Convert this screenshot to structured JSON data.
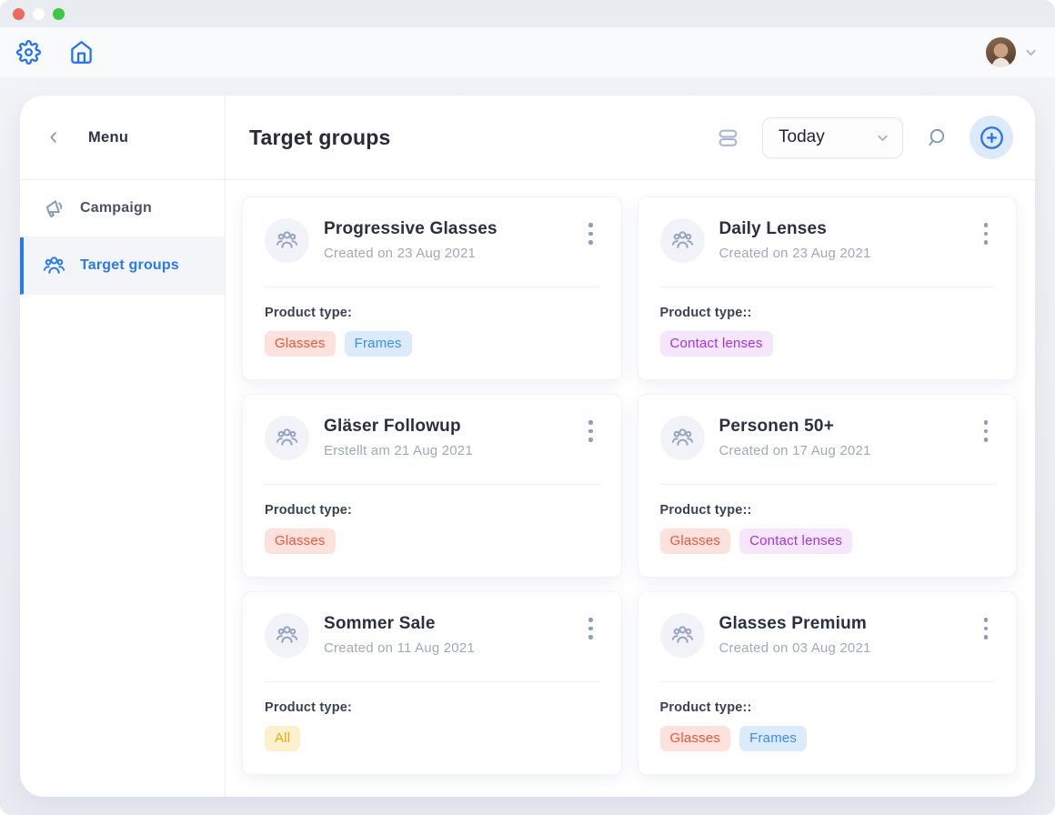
{
  "window": {
    "traffic_lights": [
      {
        "name": "close",
        "color": "#ee6a5f"
      },
      {
        "name": "minimize",
        "color": "#ffffff"
      },
      {
        "name": "zoom",
        "color": "#3ac845"
      }
    ]
  },
  "topnav": {
    "icons": [
      "gear-icon",
      "home-icon"
    ]
  },
  "sidebar": {
    "back_label": "Menu",
    "items": [
      {
        "label": "Campaign",
        "icon": "megaphone-icon",
        "active": false
      },
      {
        "label": "Target groups",
        "icon": "users-icon",
        "active": true
      }
    ]
  },
  "header": {
    "title": "Target groups",
    "date_filter": {
      "value": "Today"
    }
  },
  "cards": [
    {
      "title": "Progressive Glasses",
      "subtitle": "Created on 23 Aug 2021",
      "field_label": "Product type:",
      "tags": [
        {
          "label": "Glasses",
          "color": "red"
        },
        {
          "label": "Frames",
          "color": "blue"
        }
      ]
    },
    {
      "title": "Daily Lenses",
      "subtitle": "Created on 23 Aug 2021",
      "field_label": "Product type::",
      "tags": [
        {
          "label": "Contact lenses",
          "color": "purple"
        }
      ]
    },
    {
      "title": "Gläser Followup",
      "subtitle": "Erstellt am 21 Aug 2021",
      "field_label": "Product type:",
      "tags": [
        {
          "label": "Glasses",
          "color": "red"
        }
      ]
    },
    {
      "title": "Personen 50+",
      "subtitle": "Created on 17 Aug 2021",
      "field_label": "Product type::",
      "tags": [
        {
          "label": "Glasses",
          "color": "red"
        },
        {
          "label": "Contact lenses",
          "color": "purple"
        }
      ]
    },
    {
      "title": "Sommer Sale",
      "subtitle": "Created on 11 Aug 2021",
      "field_label": "Product type:",
      "tags": [
        {
          "label": "All",
          "color": "yellow"
        }
      ]
    },
    {
      "title": "Glasses Premium",
      "subtitle": "Created on 03 Aug 2021",
      "field_label": "Product type::",
      "tags": [
        {
          "label": "Glasses",
          "color": "red"
        },
        {
          "label": "Frames",
          "color": "blue"
        }
      ]
    }
  ],
  "colors": {
    "accent": "#2979f2",
    "tag_colors": {
      "red": {
        "text": "#f4543c",
        "bg": "#fce1dc"
      },
      "blue": {
        "text": "#3d8bf8",
        "bg": "#dcebfc"
      },
      "purple": {
        "text": "#a132ef",
        "bg": "#f6e6fc"
      },
      "yellow": {
        "text": "#efa80f",
        "bg": "#fcf0cd"
      }
    }
  }
}
